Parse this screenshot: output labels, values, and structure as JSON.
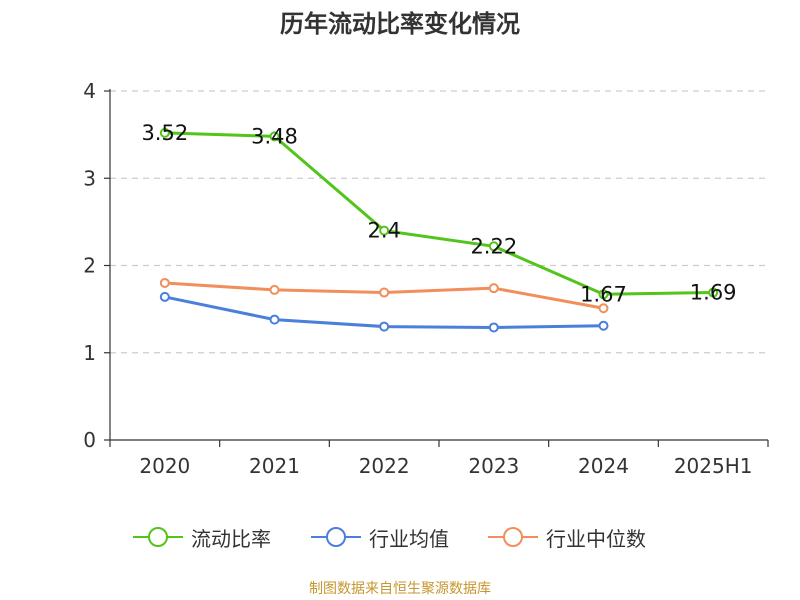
{
  "chart_data": {
    "type": "line",
    "title": "历年流动比率变化情况",
    "categories": [
      "2020",
      "2021",
      "2022",
      "2023",
      "2024",
      "2025H1"
    ],
    "ylim": [
      0,
      4
    ],
    "yticks": [
      "0",
      "1",
      "2",
      "3",
      "4"
    ],
    "grid": true,
    "legend_position": "bottom",
    "series": [
      {
        "name": "流动比率",
        "color": "#52c41a",
        "values": [
          3.52,
          3.48,
          2.4,
          2.22,
          1.67,
          1.69
        ],
        "labels": [
          "3.52",
          "3.48",
          "2.4",
          "2.22",
          "1.67",
          "1.69"
        ]
      },
      {
        "name": "行业均值",
        "color": "#4a7fdb",
        "values": [
          1.64,
          1.38,
          1.3,
          1.29,
          1.31,
          null
        ]
      },
      {
        "name": "行业中位数",
        "color": "#f28e5b",
        "values": [
          1.8,
          1.72,
          1.69,
          1.74,
          1.51,
          null
        ]
      }
    ]
  },
  "source_note": "制图数据来自恒生聚源数据库",
  "source_note_color": "#c8962e"
}
